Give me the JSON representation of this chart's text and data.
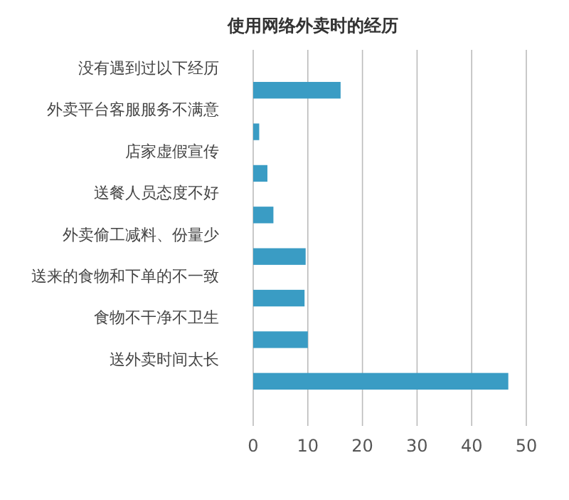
{
  "chart_data": {
    "type": "bar",
    "orientation": "horizontal",
    "title": "使用网络外卖时的经历",
    "categories": [
      "没有遇到过以下经历",
      "外卖平台客服服务不满意",
      "店家虚假宣传",
      "送餐人员态度不好",
      "外卖偷工减料、份量少",
      "送来的食物和下单的不一致",
      "食物不干净不卫生",
      "送外卖时间太长"
    ],
    "values": [
      16,
      1.1,
      2.6,
      3.7,
      9.6,
      9.4,
      10,
      46.7
    ],
    "color": "#3a9cc4",
    "xlim": [
      0,
      50
    ],
    "xticks": [
      0,
      10,
      20,
      30,
      40,
      50
    ],
    "grid": "x"
  }
}
